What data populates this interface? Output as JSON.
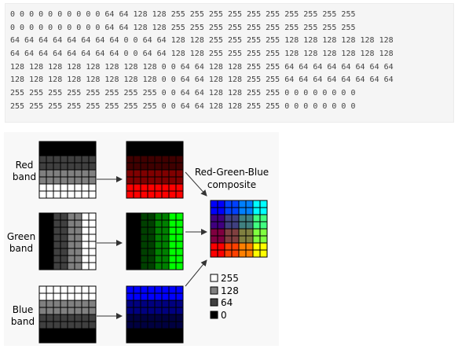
{
  "code_block": {
    "lines": [
      "0 0 0 0 0 0 0 0 0 0 64 64 128 128 255 255 255 255 255 255 255 255 255 255",
      "0 0 0 0 0 0 0 0 0 0 64 64 128 128 255 255 255 255 255 255 255 255 255 255",
      "64 64 64 64 64 64 64 64 0 0 64 64 128 128 255 255 255 255 128 128 128 128 128 128",
      "64 64 64 64 64 64 64 64 0 0 64 64 128 128 255 255 255 255 128 128 128 128 128 128",
      "128 128 128 128 128 128 128 128 0 0 64 64 128 128 255 255 64 64 64 64 64 64 64 64",
      "128 128 128 128 128 128 128 128 0 0 64 64 128 128 255 255 64 64 64 64 64 64 64 64",
      "255 255 255 255 255 255 255 255 0 0 64 64 128 128 255 255 0 0 0 0 0 0 0 0",
      "255 255 255 255 255 255 255 255 0 0 64 64 128 128 255 255 0 0 0 0 0 0 0 0"
    ]
  },
  "diagram": {
    "bands": [
      {
        "label_line1": "Red",
        "label_line2": "band",
        "color": "red",
        "grid": [
          [
            0,
            0,
            0,
            0,
            0,
            0,
            0,
            0
          ],
          [
            0,
            0,
            0,
            0,
            0,
            0,
            0,
            0
          ],
          [
            64,
            64,
            64,
            64,
            64,
            64,
            64,
            64
          ],
          [
            64,
            64,
            64,
            64,
            64,
            64,
            64,
            64
          ],
          [
            128,
            128,
            128,
            128,
            128,
            128,
            128,
            128
          ],
          [
            128,
            128,
            128,
            128,
            128,
            128,
            128,
            128
          ],
          [
            255,
            255,
            255,
            255,
            255,
            255,
            255,
            255
          ],
          [
            255,
            255,
            255,
            255,
            255,
            255,
            255,
            255
          ]
        ]
      },
      {
        "label_line1": "Green",
        "label_line2": "band",
        "color": "green",
        "grid": [
          [
            0,
            0,
            64,
            64,
            128,
            128,
            255,
            255
          ],
          [
            0,
            0,
            64,
            64,
            128,
            128,
            255,
            255
          ],
          [
            0,
            0,
            64,
            64,
            128,
            128,
            255,
            255
          ],
          [
            0,
            0,
            64,
            64,
            128,
            128,
            255,
            255
          ],
          [
            0,
            0,
            64,
            64,
            128,
            128,
            255,
            255
          ],
          [
            0,
            0,
            64,
            64,
            128,
            128,
            255,
            255
          ],
          [
            0,
            0,
            64,
            64,
            128,
            128,
            255,
            255
          ],
          [
            0,
            0,
            64,
            64,
            128,
            128,
            255,
            255
          ]
        ]
      },
      {
        "label_line1": "Blue",
        "label_line2": "band",
        "color": "blue",
        "grid": [
          [
            255,
            255,
            255,
            255,
            255,
            255,
            255,
            255
          ],
          [
            255,
            255,
            255,
            255,
            255,
            255,
            255,
            255
          ],
          [
            128,
            128,
            128,
            128,
            128,
            128,
            128,
            128
          ],
          [
            128,
            128,
            128,
            128,
            128,
            128,
            128,
            128
          ],
          [
            64,
            64,
            64,
            64,
            64,
            64,
            64,
            64
          ],
          [
            64,
            64,
            64,
            64,
            64,
            64,
            64,
            64
          ],
          [
            0,
            0,
            0,
            0,
            0,
            0,
            0,
            0
          ],
          [
            0,
            0,
            0,
            0,
            0,
            0,
            0,
            0
          ]
        ]
      }
    ],
    "composite_label_line1": "Red-Green-Blue",
    "composite_label_line2": "composite",
    "legend": [
      {
        "label": "255",
        "value": 255
      },
      {
        "label": "128",
        "value": 128
      },
      {
        "label": "64",
        "value": 64
      },
      {
        "label": "0",
        "value": 0
      }
    ],
    "colors": {
      "cell_border": "#000000",
      "arrow": "#333333",
      "label_text": "#000000"
    }
  }
}
